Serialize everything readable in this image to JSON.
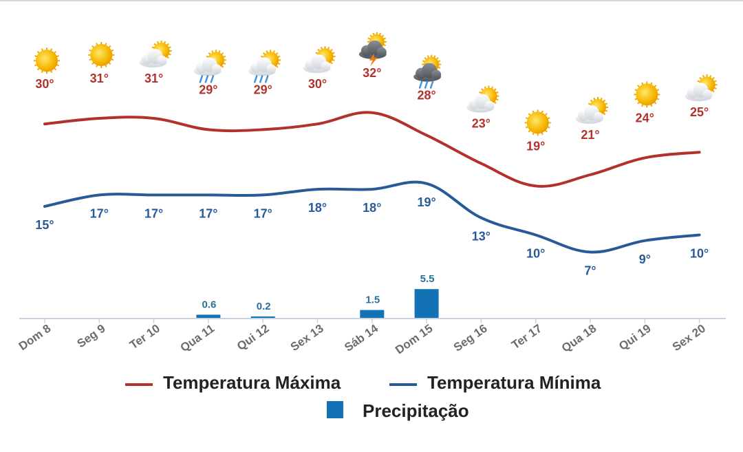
{
  "chart_data": {
    "type": "line",
    "title": "",
    "xlabel": "",
    "ylabel": "",
    "categories": [
      "Dom 8",
      "Seg 9",
      "Ter 10",
      "Qua 11",
      "Qui 12",
      "Sex 13",
      "Sáb 14",
      "Dom 15",
      "Seg 16",
      "Ter 17",
      "Qua 18",
      "Qui 19",
      "Sex 20"
    ],
    "weather_icons": [
      "sun-icon",
      "sun-icon",
      "partly-cloudy-icon",
      "rain-icon",
      "rain-icon",
      "partly-cloudy-icon",
      "thunderstorm-icon",
      "storm-rain-icon",
      "partly-cloudy-icon",
      "sun-icon",
      "partly-cloudy-icon",
      "sun-icon",
      "partly-cloudy-icon"
    ],
    "series": [
      {
        "name": "Temperatura Máxima",
        "type": "line",
        "color": "#b3312c",
        "values": [
          30,
          31,
          31,
          29,
          29,
          30,
          32,
          28,
          23,
          19,
          21,
          24,
          25
        ],
        "labels": [
          "30°",
          "31°",
          "31°",
          "29°",
          "29°",
          "30°",
          "32°",
          "28°",
          "23°",
          "19°",
          "21°",
          "24°",
          "25°"
        ]
      },
      {
        "name": "Temperatura Mínima",
        "type": "line",
        "color": "#285a99",
        "values": [
          15,
          17,
          17,
          17,
          17,
          18,
          18,
          19,
          13,
          10,
          7,
          9,
          10
        ],
        "labels": [
          "15°",
          "17°",
          "17°",
          "17°",
          "17°",
          "18°",
          "18°",
          "19°",
          "13°",
          "10°",
          "7°",
          "9°",
          "10°"
        ]
      },
      {
        "name": "Precipitação",
        "type": "bar",
        "color": "#1272b3",
        "values": [
          0,
          0,
          0,
          0.6,
          0.2,
          0,
          1.5,
          5.5,
          0,
          0,
          0,
          0,
          0
        ],
        "labels": [
          "",
          "",
          "",
          "0.6",
          "0.2",
          "",
          "1.5",
          "5.5",
          "",
          "",
          "",
          "",
          ""
        ]
      }
    ],
    "legend": "bottom",
    "grid": false
  }
}
